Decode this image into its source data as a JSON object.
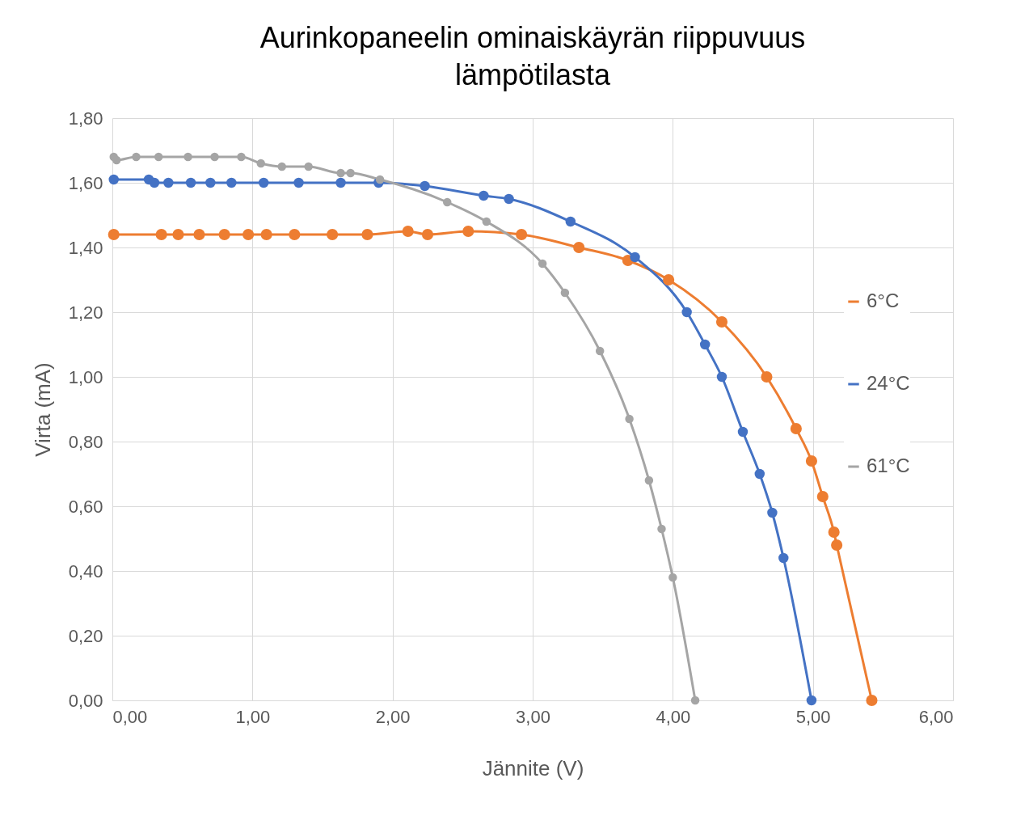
{
  "chart_data": {
    "type": "line",
    "title": "Aurinkopaneelin ominaiskäyrän riippuvuus lämpötilasta",
    "xlabel": "Jännite (V)",
    "ylabel": "Virta (mA)",
    "xlim": [
      0,
      6
    ],
    "ylim": [
      0,
      1.8
    ],
    "xticks": [
      {
        "value": 0,
        "label": "0,00"
      },
      {
        "value": 1,
        "label": "1,00"
      },
      {
        "value": 2,
        "label": "2,00"
      },
      {
        "value": 3,
        "label": "3,00"
      },
      {
        "value": 4,
        "label": "4,00"
      },
      {
        "value": 5,
        "label": "5,00"
      },
      {
        "value": 6,
        "label": "6,00"
      }
    ],
    "yticks": [
      {
        "value": 0,
        "label": "0,00"
      },
      {
        "value": 0.2,
        "label": "0,20"
      },
      {
        "value": 0.4,
        "label": "0,40"
      },
      {
        "value": 0.6,
        "label": "0,60"
      },
      {
        "value": 0.8,
        "label": "0,80"
      },
      {
        "value": 1,
        "label": "1,00"
      },
      {
        "value": 1.2,
        "label": "1,20"
      },
      {
        "value": 1.4,
        "label": "1,40"
      },
      {
        "value": 1.6,
        "label": "1,60"
      },
      {
        "value": 1.8,
        "label": "1,80"
      }
    ],
    "grid": true,
    "legend": "right",
    "marker": "circle",
    "line_style": "solid",
    "series": [
      {
        "name": "6°C",
        "color": "#ed7d31",
        "x": [
          0.01,
          0.35,
          0.47,
          0.62,
          0.8,
          0.97,
          1.1,
          1.3,
          1.57,
          1.82,
          2.11,
          2.25,
          2.54,
          2.92,
          3.33,
          3.68,
          3.97,
          4.35,
          4.67,
          4.88,
          4.99,
          5.07,
          5.15,
          5.17,
          5.42
        ],
        "values": [
          1.44,
          1.44,
          1.44,
          1.44,
          1.44,
          1.44,
          1.44,
          1.44,
          1.44,
          1.44,
          1.45,
          1.44,
          1.45,
          1.44,
          1.4,
          1.36,
          1.3,
          1.17,
          1.0,
          0.84,
          0.74,
          0.63,
          0.52,
          0.48,
          0.0
        ]
      },
      {
        "name": "24°C",
        "color": "#4472c4",
        "x": [
          0.01,
          0.26,
          0.3,
          0.4,
          0.56,
          0.7,
          0.85,
          1.08,
          1.33,
          1.63,
          1.9,
          2.23,
          2.65,
          2.83,
          3.27,
          3.73,
          4.1,
          4.23,
          4.35,
          4.5,
          4.62,
          4.71,
          4.79,
          4.99
        ],
        "values": [
          1.61,
          1.61,
          1.6,
          1.6,
          1.6,
          1.6,
          1.6,
          1.6,
          1.6,
          1.6,
          1.6,
          1.59,
          1.56,
          1.55,
          1.48,
          1.37,
          1.2,
          1.1,
          1.0,
          0.83,
          0.7,
          0.58,
          0.44,
          0.0
        ]
      },
      {
        "name": "61°C",
        "color": "#a5a5a5",
        "x": [
          0.01,
          0.03,
          0.17,
          0.33,
          0.54,
          0.73,
          0.92,
          1.06,
          1.21,
          1.4,
          1.63,
          1.7,
          1.91,
          2.39,
          2.67,
          3.07,
          3.23,
          3.48,
          3.69,
          3.83,
          3.92,
          4.0,
          4.16
        ],
        "values": [
          1.68,
          1.67,
          1.68,
          1.68,
          1.68,
          1.68,
          1.68,
          1.66,
          1.65,
          1.65,
          1.63,
          1.63,
          1.61,
          1.54,
          1.48,
          1.35,
          1.26,
          1.08,
          0.87,
          0.68,
          0.53,
          0.38,
          0.0
        ]
      }
    ]
  }
}
